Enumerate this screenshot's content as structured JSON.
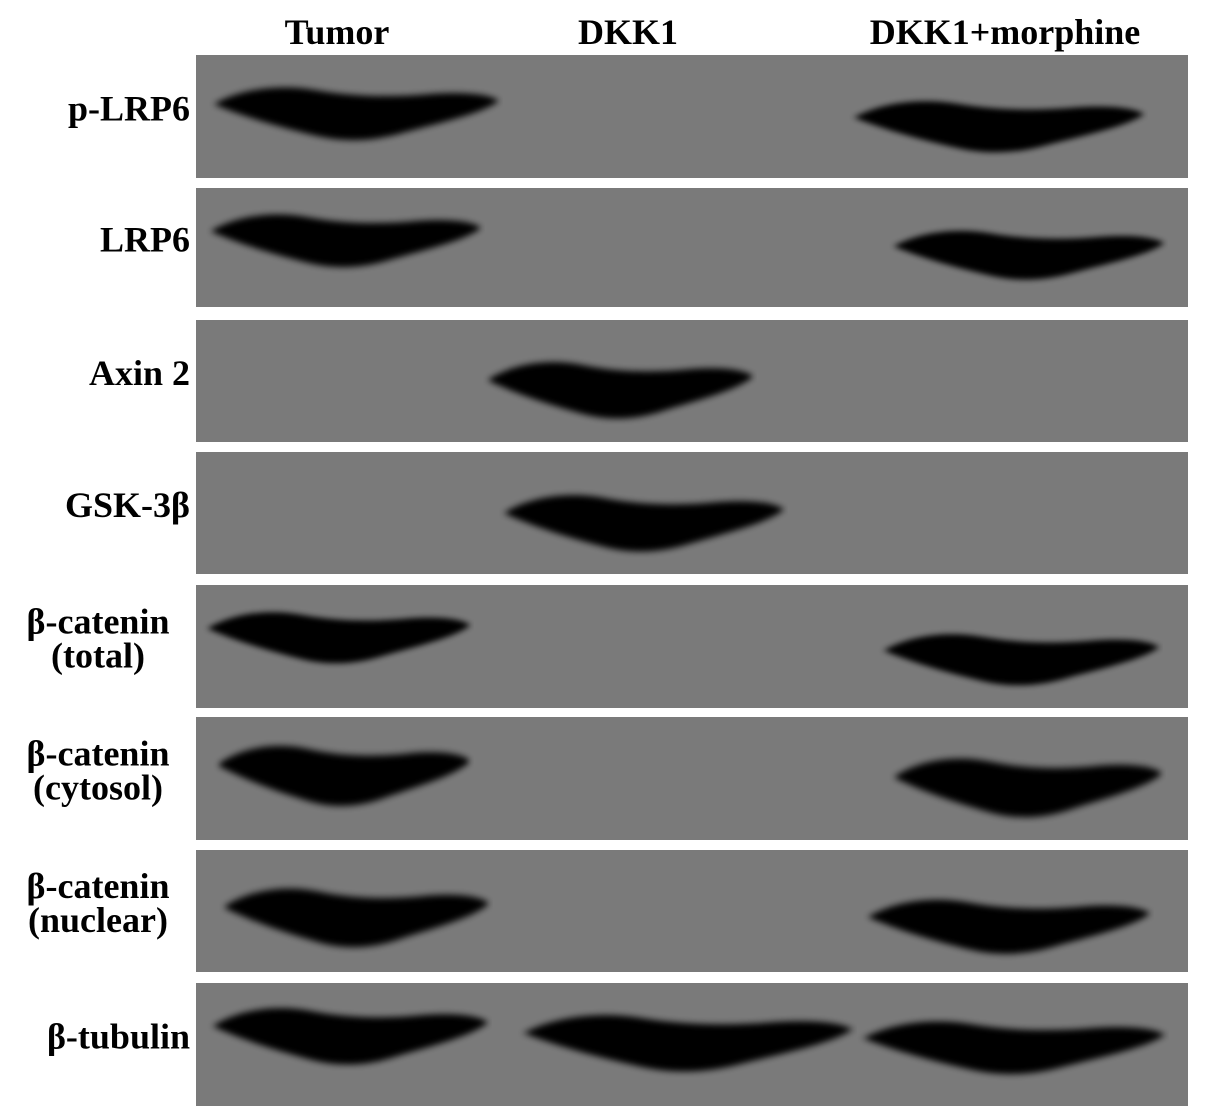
{
  "columns": [
    "Tumor",
    "DKK1",
    "DKK1+morphine"
  ],
  "rows": [
    {
      "label": [
        "p-LRP6"
      ]
    },
    {
      "label": [
        "LRP6"
      ]
    },
    {
      "label": [
        "Axin 2"
      ]
    },
    {
      "label": [
        "GSK-3β"
      ]
    },
    {
      "label": [
        "β-catenin",
        "(total)"
      ]
    },
    {
      "label": [
        "β-catenin",
        "(cytosol)"
      ]
    },
    {
      "label": [
        "β-catenin",
        "(nuclear)"
      ]
    },
    {
      "label": [
        "β-tubulin"
      ]
    }
  ]
}
